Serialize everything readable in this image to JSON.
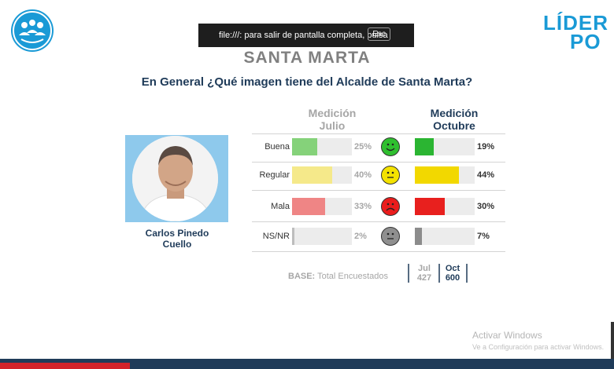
{
  "fullscreen_notice": {
    "text": "file:///: para salir de pantalla completa, pulsa",
    "key": "Esc"
  },
  "brand": {
    "line1": "LÍDER",
    "line2": "PO"
  },
  "title": "SANTA MARTA",
  "question": "En General ¿Qué imagen tiene del Alcalde de Santa Marta?",
  "columns": {
    "july": [
      "Medición",
      "Julio"
    ],
    "october": [
      "Medición",
      "Octubre"
    ]
  },
  "person": {
    "name_line1": "Carlos Pinedo",
    "name_line2": "Cuello"
  },
  "chart_data": {
    "type": "bar",
    "categories": [
      "Buena",
      "Regular",
      "Mala",
      "NS/NR"
    ],
    "series": [
      {
        "name": "Medición Julio",
        "values": [
          25,
          40,
          33,
          2
        ],
        "labels": [
          "25%",
          "40%",
          "33%",
          "2%"
        ]
      },
      {
        "name": "Medición Octubre",
        "values": [
          19,
          44,
          30,
          7
        ],
        "labels": [
          "19%",
          "44%",
          "30%",
          "7%"
        ]
      }
    ],
    "ylim": [
      0,
      60
    ]
  },
  "colors": {
    "july": [
      "#85d27a",
      "#f5e98a",
      "#ef8585",
      "#bdbdbd"
    ],
    "october": [
      "#2bb532",
      "#f2d800",
      "#e8201e",
      "#8c8c8c"
    ],
    "faces": [
      "#2fbf2f",
      "#f4e200",
      "#ea1c1c",
      "#8f8f8f"
    ]
  },
  "base": {
    "label": "BASE:",
    "text": "Total Encuestados",
    "jul_label": "Jul",
    "oct_label": "Oct",
    "jul_value": "427",
    "oct_value": "600"
  },
  "windows": {
    "line1": "Activar Windows",
    "line2": "Ve a Configuración para activar Windows."
  },
  "icons": {
    "left_logo": "people-globe-icon",
    "faces": [
      "happy-face-icon",
      "neutral-face-icon",
      "sad-face-icon",
      "neutral-face-icon"
    ]
  }
}
